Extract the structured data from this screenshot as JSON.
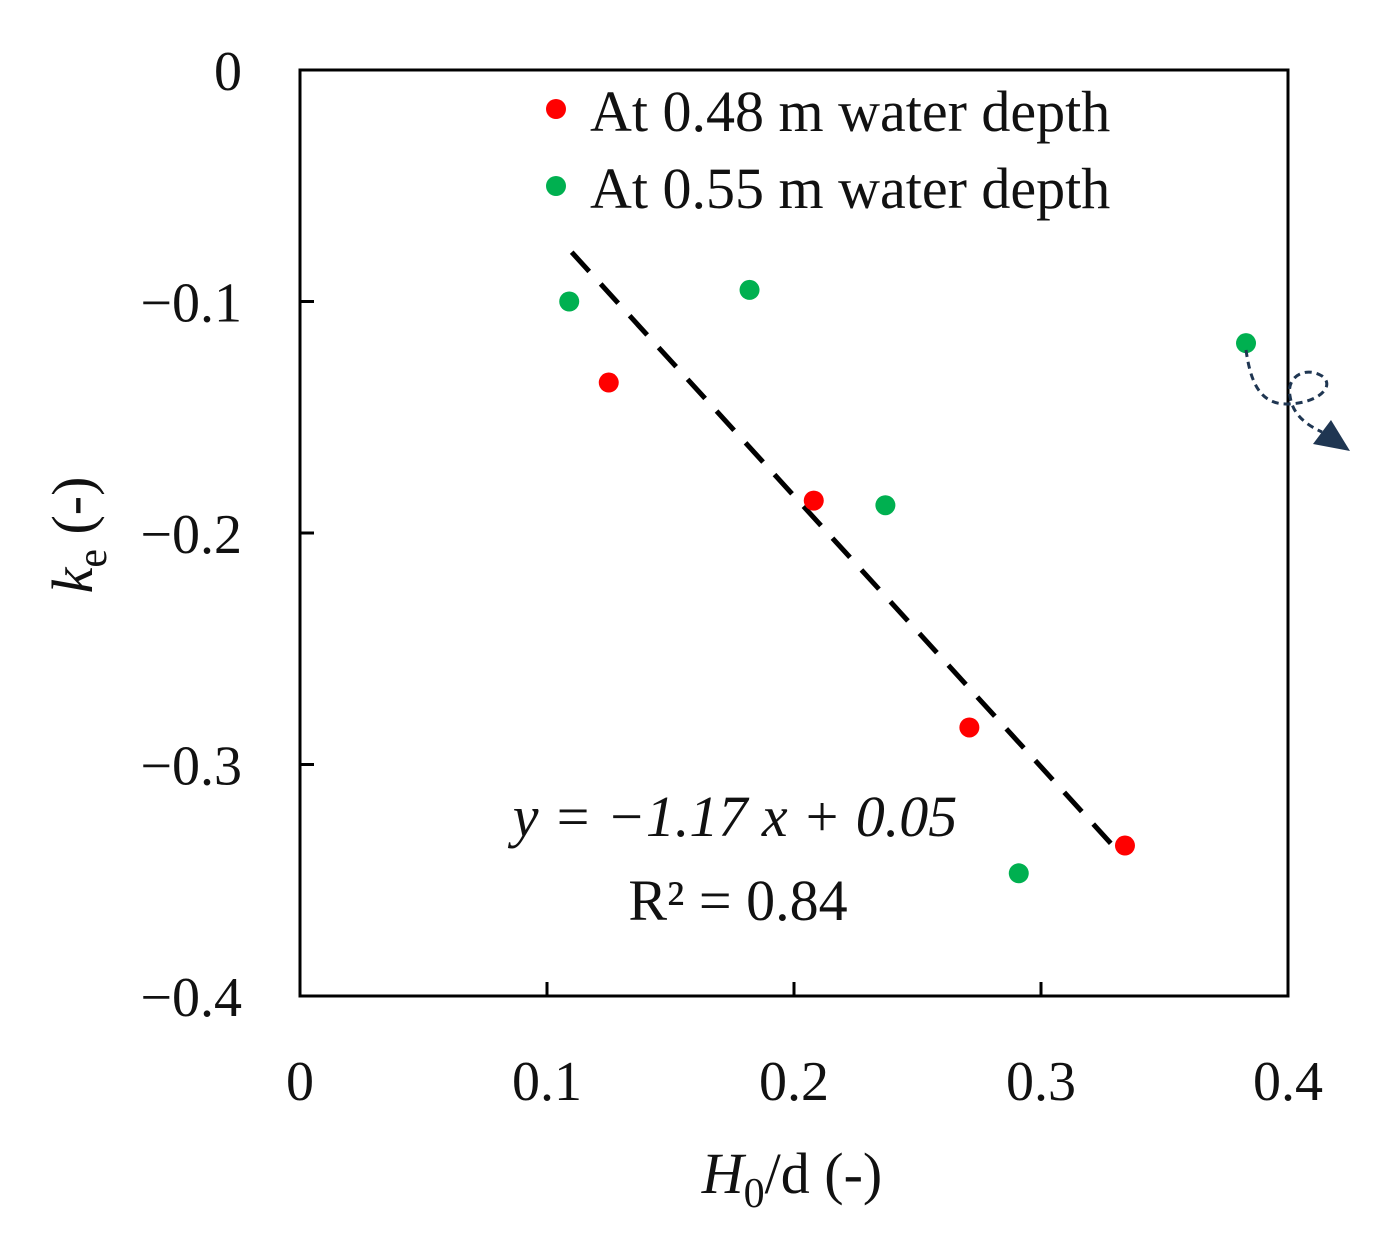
{
  "chart_data": {
    "type": "scatter",
    "title": "",
    "xlabel": {
      "main": "H",
      "sub": "0",
      "rest": "/d (-)"
    },
    "ylabel": {
      "main": "k",
      "sub": "e",
      "rest": " (-)"
    },
    "xlim": [
      0,
      0.4
    ],
    "ylim": [
      -0.4,
      0
    ],
    "xticks": [
      0,
      0.1,
      0.2,
      0.3,
      0.4
    ],
    "xtick_labels": [
      "0",
      "0.1",
      "0.2",
      "0.3",
      "0.4"
    ],
    "yticks": [
      0,
      -0.1,
      -0.2,
      -0.3,
      -0.4
    ],
    "ytick_labels": [
      "0",
      "−0.1",
      "−0.2",
      "−0.3",
      "−0.4"
    ],
    "grid": false,
    "legend_position": "top-right",
    "series": [
      {
        "name": "At 0.48 m water depth",
        "color": "#ff0000",
        "points": [
          {
            "x": 0.125,
            "y": -0.135
          },
          {
            "x": 0.208,
            "y": -0.186
          },
          {
            "x": 0.271,
            "y": -0.284
          },
          {
            "x": 0.334,
            "y": -0.335
          }
        ]
      },
      {
        "name": "At 0.55 m water depth",
        "color": "#00b050",
        "points": [
          {
            "x": 0.109,
            "y": -0.1
          },
          {
            "x": 0.182,
            "y": -0.095
          },
          {
            "x": 0.237,
            "y": -0.188
          },
          {
            "x": 0.291,
            "y": -0.347
          },
          {
            "x": 0.383,
            "y": -0.118
          }
        ]
      }
    ],
    "trendline": {
      "slope": -1.17,
      "intercept": 0.05,
      "x_range": [
        0.11,
        0.33
      ],
      "color": "#000000",
      "style": "dashed"
    },
    "annotations": {
      "equation": "y = −1.17 x + 0.05",
      "r_squared": "R² = 0.84"
    },
    "arrow_marker": {
      "color": "#1f3652"
    }
  }
}
